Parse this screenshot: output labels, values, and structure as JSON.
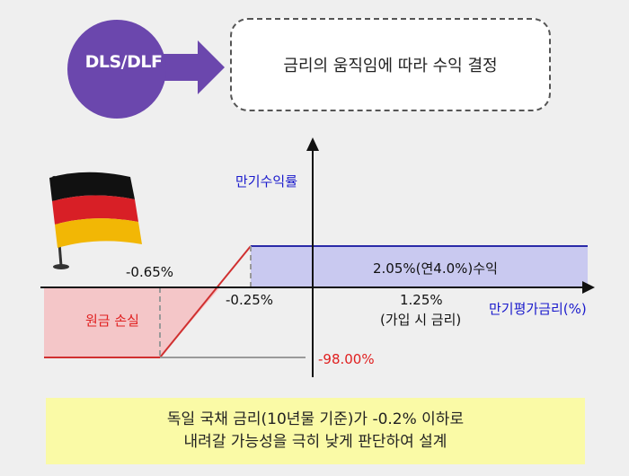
{
  "header": {
    "badge_label": "DLS/DLF",
    "callout_text": "금리의 움직임에 따라 수익  결정"
  },
  "diagram": {
    "y_axis_label": "만기수익률",
    "x_axis_label": "만기평가금리(%)",
    "label_neg065": "-0.65%",
    "label_neg025": "-0.25%",
    "label_125": "1.25%",
    "label_125_sub": "(가입 시 금리)",
    "profit_label": "2.05%(연4.0%)수익",
    "loss_label": "원금 손실",
    "loss_value": "-98.00%"
  },
  "note": {
    "line1": "독일 국채 금리(10년물 기준)가 -0.2% 이하로",
    "line2": "내려갈 가능성을 극히 낮게 판단하여 설계"
  },
  "colors": {
    "badge": "#6b47ad",
    "profit_fill": "#c9c9f0",
    "loss_fill": "#f4c6c8",
    "payoff_line": "#d03030",
    "y_label": "#1a1acc",
    "loss_text": "#e02020",
    "note_bg": "#fafaa6"
  }
}
